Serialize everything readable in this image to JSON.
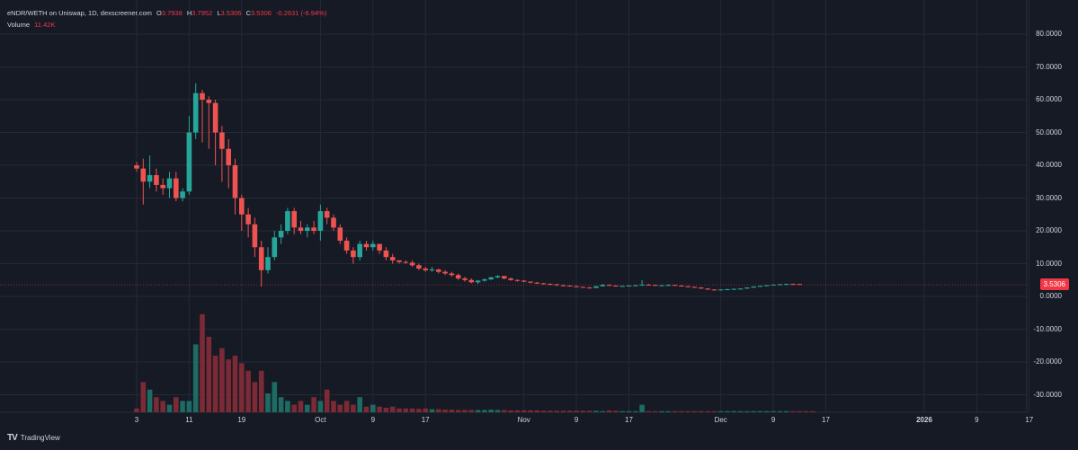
{
  "header": {
    "symbol": "eNDR/WETH on Uniswap, 1D, dexscreener.com",
    "open_label": "O",
    "open": "3.7938",
    "high_label": "H",
    "high": "3.7952",
    "low_label": "L",
    "low": "3.5306",
    "close_label": "C",
    "close": "3.5306",
    "change": "-0.2631 (-6.94%)",
    "volume_label": "Volume",
    "volume": "11.42K"
  },
  "price_tag": "3.5306",
  "footer": {
    "brand": "TradingView"
  },
  "colors": {
    "up": "#26a69a",
    "down": "#ef5350",
    "up_vol": "#1d6b62",
    "down_vol": "#7c2a35",
    "bg": "#161a25",
    "grid": "#242936"
  },
  "chart_data": {
    "type": "candlestick",
    "y_ticks": [
      "80.0000",
      "70.0000",
      "60.0000",
      "50.0000",
      "40.0000",
      "30.0000",
      "20.0000",
      "10.0000",
      "0.0000",
      "-10.0000",
      "-20.0000",
      "-30.0000"
    ],
    "ylim": [
      -35,
      85
    ],
    "x_ticks": [
      {
        "label": "3",
        "day": 0
      },
      {
        "label": "11",
        "day": 8
      },
      {
        "label": "19",
        "day": 16
      },
      {
        "label": "Oct",
        "day": 28,
        "bold": false
      },
      {
        "label": "9",
        "day": 36
      },
      {
        "label": "17",
        "day": 44
      },
      {
        "label": "Nov",
        "day": 59
      },
      {
        "label": "9",
        "day": 67
      },
      {
        "label": "17",
        "day": 75
      },
      {
        "label": "Dec",
        "day": 89
      },
      {
        "label": "9",
        "day": 97
      },
      {
        "label": "17",
        "day": 105
      },
      {
        "label": "2026",
        "day": 120,
        "bold": true
      },
      {
        "label": "9",
        "day": 128
      },
      {
        "label": "17",
        "day": 136
      }
    ],
    "candles": [
      [
        40,
        41,
        38,
        39
      ],
      [
        39,
        42,
        28,
        35
      ],
      [
        35,
        43,
        33,
        37
      ],
      [
        37,
        39,
        32,
        34
      ],
      [
        34,
        36,
        31,
        33
      ],
      [
        33,
        38,
        30,
        36
      ],
      [
        36,
        38,
        29,
        30
      ],
      [
        30,
        33,
        29,
        32
      ],
      [
        32,
        55,
        31,
        50
      ],
      [
        50,
        65,
        48,
        62
      ],
      [
        62,
        63,
        47,
        60
      ],
      [
        60,
        61,
        45,
        59
      ],
      [
        59,
        60,
        40,
        50
      ],
      [
        50,
        52,
        35,
        45
      ],
      [
        45,
        48,
        33,
        40
      ],
      [
        40,
        42,
        25,
        30
      ],
      [
        30,
        31,
        20,
        25
      ],
      [
        25,
        27,
        18,
        22
      ],
      [
        22,
        24,
        12,
        15
      ],
      [
        15,
        17,
        3,
        8
      ],
      [
        8,
        15,
        7,
        12
      ],
      [
        12,
        20,
        11,
        18
      ],
      [
        18,
        22,
        16,
        20
      ],
      [
        20,
        27,
        19,
        26
      ],
      [
        26,
        27,
        19,
        21
      ],
      [
        21,
        23,
        19,
        20
      ],
      [
        20,
        22,
        18,
        21
      ],
      [
        21,
        23,
        19,
        20
      ],
      [
        20,
        28,
        17,
        26
      ],
      [
        26,
        27,
        22,
        24
      ],
      [
        24,
        25,
        20,
        21
      ],
      [
        21,
        22,
        16,
        17
      ],
      [
        17,
        18,
        13,
        14
      ],
      [
        14,
        15,
        10,
        12
      ],
      [
        12,
        17,
        11,
        16
      ],
      [
        16,
        17,
        14,
        15
      ],
      [
        15,
        17,
        14,
        16
      ],
      [
        16,
        16,
        13,
        14
      ],
      [
        14,
        15,
        11,
        12
      ],
      [
        12,
        13,
        10,
        11
      ],
      [
        11,
        11,
        10,
        10.5
      ],
      [
        10.5,
        11,
        10,
        10.3
      ],
      [
        10.3,
        11,
        9,
        9.5
      ],
      [
        9.5,
        10,
        8,
        8.5
      ],
      [
        8.5,
        9,
        7.5,
        8
      ],
      [
        8,
        9,
        7.5,
        8.2
      ],
      [
        8.2,
        8.5,
        7,
        7.5
      ],
      [
        7.5,
        8,
        6.5,
        7
      ],
      [
        7,
        7.5,
        6,
        6.5
      ],
      [
        6.5,
        7,
        5,
        5.5
      ],
      [
        5.5,
        6,
        4.5,
        5
      ],
      [
        5,
        5.5,
        4,
        4.3
      ],
      [
        4.3,
        5,
        3.8,
        4.8
      ],
      [
        4.8,
        5.5,
        4.5,
        5.2
      ],
      [
        5.2,
        6,
        5,
        5.8
      ],
      [
        5.8,
        6.5,
        5.5,
        6.2
      ],
      [
        6.2,
        6.3,
        5.2,
        5.5
      ],
      [
        5.5,
        5.7,
        4.8,
        5
      ],
      [
        5,
        5.2,
        4.5,
        4.8
      ],
      [
        4.8,
        5,
        4.3,
        4.5
      ],
      [
        4.5,
        4.6,
        4,
        4.2
      ],
      [
        4.2,
        4.4,
        3.8,
        4
      ],
      [
        4,
        4.1,
        3.6,
        3.8
      ],
      [
        3.8,
        4,
        3.5,
        3.7
      ],
      [
        3.7,
        3.8,
        3.2,
        3.4
      ],
      [
        3.4,
        3.6,
        3.1,
        3.3
      ],
      [
        3.3,
        3.4,
        3,
        3.1
      ],
      [
        3.1,
        3.3,
        2.8,
        2.9
      ],
      [
        2.9,
        3,
        2.6,
        2.7
      ],
      [
        2.7,
        2.9,
        2.5,
        2.6
      ],
      [
        2.6,
        3.2,
        2.5,
        3.1
      ],
      [
        3.1,
        3.8,
        3,
        3.5
      ],
      [
        3.5,
        3.7,
        3.2,
        3.3
      ],
      [
        3.3,
        3.4,
        3,
        3.1
      ],
      [
        3.1,
        3.3,
        2.9,
        3.2
      ],
      [
        3.2,
        3.4,
        3,
        3.3
      ],
      [
        3.3,
        3.5,
        3.1,
        3.4
      ],
      [
        3.4,
        5,
        3.2,
        3.6
      ],
      [
        3.6,
        3.8,
        3.3,
        3.5
      ],
      [
        3.5,
        3.6,
        3.2,
        3.3
      ],
      [
        3.3,
        3.5,
        3.1,
        3.4
      ],
      [
        3.4,
        3.7,
        3.2,
        3.5
      ],
      [
        3.5,
        3.6,
        3.2,
        3.3
      ],
      [
        3.3,
        3.4,
        3,
        3.1
      ],
      [
        3.1,
        3.2,
        2.8,
        2.9
      ],
      [
        2.9,
        3,
        2.6,
        2.7
      ],
      [
        2.7,
        2.8,
        2.3,
        2.4
      ],
      [
        2.4,
        2.5,
        2,
        2.1
      ],
      [
        2.1,
        2.2,
        1.8,
        1.9
      ],
      [
        1.9,
        2.2,
        1.8,
        2.1
      ],
      [
        2.1,
        2.3,
        1.9,
        2.2
      ],
      [
        2.2,
        2.4,
        2,
        2.3
      ],
      [
        2.3,
        2.5,
        2.1,
        2.4
      ],
      [
        2.4,
        2.8,
        2.3,
        2.7
      ],
      [
        2.7,
        3.1,
        2.6,
        3
      ],
      [
        3,
        3.3,
        2.9,
        3.2
      ],
      [
        3.2,
        3.5,
        3.1,
        3.4
      ],
      [
        3.4,
        3.7,
        3.3,
        3.6
      ],
      [
        3.6,
        3.8,
        3.4,
        3.7
      ],
      [
        3.7,
        3.9,
        3.5,
        3.8
      ],
      [
        3.8,
        3.95,
        3.6,
        3.79
      ],
      [
        3.79,
        3.8,
        3.53,
        3.53
      ]
    ],
    "volumes": [
      1,
      8,
      6,
      4,
      3,
      2,
      4,
      3,
      3,
      18,
      26,
      20,
      15,
      17,
      14,
      15,
      13,
      11,
      8,
      11,
      5,
      8,
      4,
      3,
      2,
      3,
      2,
      4,
      3,
      6,
      3,
      2,
      3,
      2,
      4,
      1.5,
      2,
      1.5,
      1.2,
      1.5,
      1,
      1,
      1,
      0.9,
      1,
      0.8,
      0.8,
      0.7,
      0.7,
      0.6,
      0.6,
      0.6,
      0.6,
      0.6,
      0.7,
      0.6,
      0.6,
      0.5,
      0.5,
      0.5,
      0.5,
      0.5,
      0.4,
      0.4,
      0.4,
      0.4,
      0.4,
      0.4,
      0.4,
      0.4,
      0.4,
      0.3,
      0.5,
      0.4,
      0.3,
      0.3,
      0.3,
      2,
      0.3,
      0.3,
      0.3,
      0.3,
      0.3,
      0.3,
      0.3,
      0.3,
      0.3,
      0.3,
      0.3,
      0.3,
      0.3,
      0.3,
      0.3,
      0.3,
      0.3,
      0.3,
      0.3,
      0.3,
      0.3,
      0.3,
      0.3,
      0.3,
      0.3,
      0.3
    ]
  }
}
